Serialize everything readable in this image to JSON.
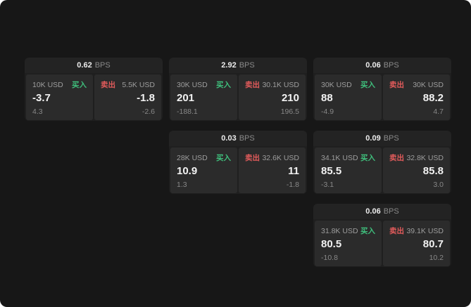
{
  "labels": {
    "bps": "BPS",
    "buy": "买入",
    "sell": "卖出"
  },
  "colors": {
    "buy": "#3fbf7c",
    "sell": "#e25b5b",
    "background": "#171717",
    "panel": "#2b2b2b"
  },
  "cards": [
    {
      "spread": "0.62",
      "buy": {
        "size": "10K USD",
        "price": "-3.7",
        "sub": "4.3"
      },
      "sell": {
        "size": "5.5K USD",
        "price": "-1.8",
        "sub": "-2.6"
      }
    },
    {
      "spread": "2.92",
      "buy": {
        "size": "30K USD",
        "price": "201",
        "sub": "-188.1"
      },
      "sell": {
        "size": "30.1K USD",
        "price": "210",
        "sub": "196.5"
      }
    },
    {
      "spread": "0.06",
      "buy": {
        "size": "30K USD",
        "price": "88",
        "sub": "-4.9"
      },
      "sell": {
        "size": "30K USD",
        "price": "88.2",
        "sub": "4.7"
      }
    },
    {
      "spread": "0.03",
      "buy": {
        "size": "28K USD",
        "price": "10.9",
        "sub": "1.3"
      },
      "sell": {
        "size": "32.6K USD",
        "price": "11",
        "sub": "-1.8"
      }
    },
    {
      "spread": "0.09",
      "buy": {
        "size": "34.1K USD",
        "price": "85.5",
        "sub": "-3.1"
      },
      "sell": {
        "size": "32.8K USD",
        "price": "85.8",
        "sub": "3.0"
      }
    },
    {
      "spread": "0.06",
      "buy": {
        "size": "31.8K USD",
        "price": "80.5",
        "sub": "-10.8"
      },
      "sell": {
        "size": "39.1K USD",
        "price": "80.7",
        "sub": "10.2"
      }
    }
  ]
}
